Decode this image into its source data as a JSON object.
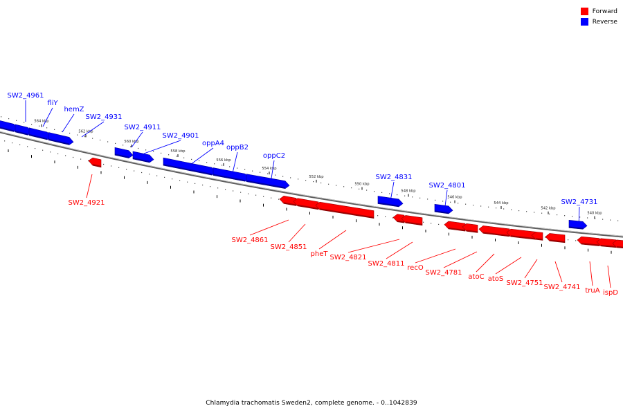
{
  "caption": "Chlamydia trachomatis Sweden2, complete genome. - 0..1042839",
  "legend": [
    {
      "label": "Forward",
      "color": "#ff0000"
    },
    {
      "label": "Reverse",
      "color": "#0000ff"
    }
  ],
  "colors": {
    "forward": "#ff0000",
    "reverse": "#0000ff",
    "backbone": "#808080"
  },
  "ticks": [
    "564 kbp",
    "562 kbp",
    "560 kbp",
    "558 kbp",
    "556 kbp",
    "554 kbp",
    "552 kbp",
    "550 kbp",
    "548 kbp",
    "546 kbp",
    "544 kbp",
    "542 kbp",
    "540 kbp"
  ],
  "genes": [
    {
      "label": "SW2_4961",
      "strand": "reverse"
    },
    {
      "label": "fliY",
      "strand": "reverse"
    },
    {
      "label": "hemZ",
      "strand": "reverse"
    },
    {
      "label": "SW2_4931",
      "strand": "reverse"
    },
    {
      "label": "SW2_4921",
      "strand": "forward"
    },
    {
      "label": "SW2_4911",
      "strand": "reverse"
    },
    {
      "label": "SW2_4901",
      "strand": "reverse"
    },
    {
      "label": "oppA4",
      "strand": "reverse"
    },
    {
      "label": "oppB2",
      "strand": "reverse"
    },
    {
      "label": "oppC2",
      "strand": "reverse"
    },
    {
      "label": "SW2_4861",
      "strand": "forward"
    },
    {
      "label": "SW2_4851",
      "strand": "forward"
    },
    {
      "label": "pheT",
      "strand": "forward"
    },
    {
      "label": "SW2_4831",
      "strand": "reverse"
    },
    {
      "label": "SW2_4821",
      "strand": "forward"
    },
    {
      "label": "SW2_4811",
      "strand": "forward"
    },
    {
      "label": "recO",
      "strand": "forward"
    },
    {
      "label": "SW2_4801",
      "strand": "reverse"
    },
    {
      "label": "SW2_4781",
      "strand": "forward"
    },
    {
      "label": "atoC",
      "strand": "forward"
    },
    {
      "label": "atoS",
      "strand": "forward"
    },
    {
      "label": "SW2_4751",
      "strand": "forward"
    },
    {
      "label": "SW2_4741",
      "strand": "forward"
    },
    {
      "label": "SW2_4731",
      "strand": "reverse"
    },
    {
      "label": "truA",
      "strand": "forward"
    },
    {
      "label": "ispD",
      "strand": "forward"
    }
  ]
}
